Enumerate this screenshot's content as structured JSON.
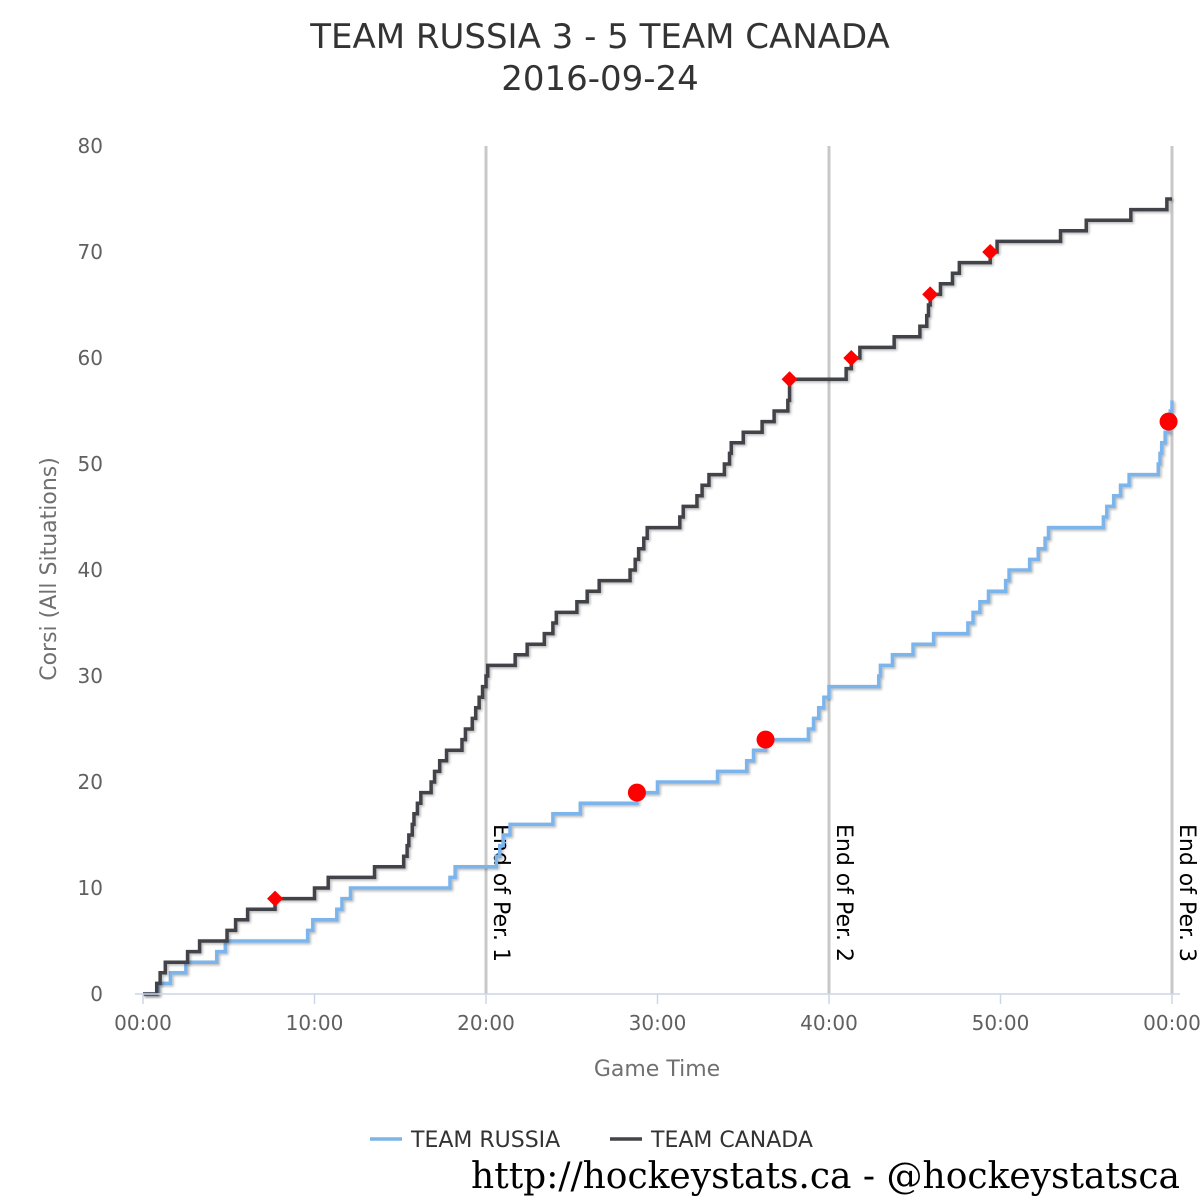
{
  "chart_data": {
    "type": "line",
    "title": "TEAM RUSSIA 3 - 5 TEAM CANADA",
    "subtitle": "2016-09-24",
    "xlabel": "Game Time",
    "ylabel": "Corsi (All Situations)",
    "x_unit": "minutes",
    "xlim": [
      0,
      60
    ],
    "ylim": [
      0,
      80
    ],
    "x_ticks": [
      {
        "value": 0,
        "label": "00:00"
      },
      {
        "value": 10,
        "label": "10:00"
      },
      {
        "value": 20,
        "label": "20:00"
      },
      {
        "value": 30,
        "label": "30:00"
      },
      {
        "value": 40,
        "label": "40:00"
      },
      {
        "value": 50,
        "label": "50:00"
      },
      {
        "value": 60,
        "label": "00:00"
      }
    ],
    "y_ticks": [
      0,
      10,
      20,
      30,
      40,
      50,
      60,
      70,
      80
    ],
    "grid": false,
    "period_markers": [
      {
        "x": 20,
        "label": "End of Per. 1"
      },
      {
        "x": 40,
        "label": "End of Per. 2"
      },
      {
        "x": 60,
        "label": "End of Per. 3"
      }
    ],
    "legend_position": "bottom-center",
    "series": [
      {
        "name": "TEAM RUSSIA",
        "color": "#7cb5ec",
        "goal_marker": "circle",
        "points": [
          [
            0.9,
            1
          ],
          [
            1.6,
            2
          ],
          [
            2.5,
            3
          ],
          [
            4.3,
            4
          ],
          [
            4.8,
            5
          ],
          [
            9.6,
            6
          ],
          [
            9.9,
            7
          ],
          [
            11.3,
            8
          ],
          [
            11.6,
            9
          ],
          [
            12.1,
            10
          ],
          [
            17.9,
            11
          ],
          [
            18.2,
            12
          ],
          [
            20.6,
            13
          ],
          [
            20.8,
            14
          ],
          [
            21.0,
            15
          ],
          [
            21.4,
            16
          ],
          [
            23.9,
            17
          ],
          [
            25.5,
            18
          ],
          [
            28.8,
            19
          ],
          [
            30.0,
            20
          ],
          [
            33.5,
            21
          ],
          [
            35.2,
            22
          ],
          [
            35.6,
            23
          ],
          [
            36.3,
            24
          ],
          [
            38.8,
            25
          ],
          [
            39.1,
            26
          ],
          [
            39.4,
            27
          ],
          [
            39.7,
            28
          ],
          [
            40.0,
            29
          ],
          [
            42.9,
            30
          ],
          [
            43.0,
            31
          ],
          [
            43.7,
            32
          ],
          [
            44.9,
            33
          ],
          [
            46.1,
            34
          ],
          [
            48.1,
            35
          ],
          [
            48.4,
            36
          ],
          [
            48.8,
            37
          ],
          [
            49.3,
            38
          ],
          [
            50.3,
            39
          ],
          [
            50.5,
            40
          ],
          [
            51.7,
            41
          ],
          [
            52.2,
            42
          ],
          [
            52.6,
            43
          ],
          [
            52.8,
            44
          ],
          [
            56.0,
            45
          ],
          [
            56.2,
            46
          ],
          [
            56.6,
            47
          ],
          [
            57.0,
            48
          ],
          [
            57.5,
            49
          ],
          [
            59.2,
            50
          ],
          [
            59.3,
            51
          ],
          [
            59.4,
            52
          ],
          [
            59.6,
            53
          ],
          [
            59.8,
            54
          ],
          [
            59.9,
            55
          ],
          [
            60.0,
            56
          ]
        ],
        "goals": [
          28.8,
          36.3,
          59.8
        ]
      },
      {
        "name": "TEAM CANADA",
        "color": "#434348",
        "goal_marker": "diamond",
        "points": [
          [
            0.8,
            1
          ],
          [
            1.0,
            2
          ],
          [
            1.3,
            3
          ],
          [
            2.6,
            4
          ],
          [
            3.3,
            5
          ],
          [
            4.9,
            6
          ],
          [
            5.4,
            7
          ],
          [
            6.1,
            8
          ],
          [
            7.7,
            9
          ],
          [
            10.0,
            10
          ],
          [
            10.8,
            11
          ],
          [
            13.5,
            12
          ],
          [
            15.2,
            13
          ],
          [
            15.4,
            14
          ],
          [
            15.5,
            15
          ],
          [
            15.7,
            16
          ],
          [
            15.8,
            17
          ],
          [
            16.0,
            18
          ],
          [
            16.2,
            19
          ],
          [
            16.8,
            20
          ],
          [
            17.0,
            21
          ],
          [
            17.3,
            22
          ],
          [
            17.7,
            23
          ],
          [
            18.6,
            24
          ],
          [
            18.8,
            25
          ],
          [
            19.2,
            26
          ],
          [
            19.4,
            27
          ],
          [
            19.6,
            28
          ],
          [
            19.8,
            29
          ],
          [
            20.0,
            30
          ],
          [
            20.1,
            31
          ],
          [
            21.7,
            32
          ],
          [
            22.4,
            33
          ],
          [
            23.4,
            34
          ],
          [
            23.9,
            35
          ],
          [
            24.1,
            36
          ],
          [
            25.3,
            37
          ],
          [
            25.9,
            38
          ],
          [
            26.6,
            39
          ],
          [
            28.4,
            40
          ],
          [
            28.7,
            41
          ],
          [
            28.9,
            42
          ],
          [
            29.2,
            43
          ],
          [
            29.4,
            44
          ],
          [
            31.3,
            45
          ],
          [
            31.5,
            46
          ],
          [
            32.3,
            47
          ],
          [
            32.6,
            48
          ],
          [
            33.0,
            49
          ],
          [
            33.9,
            50
          ],
          [
            34.2,
            51
          ],
          [
            34.3,
            52
          ],
          [
            35.0,
            53
          ],
          [
            36.1,
            54
          ],
          [
            36.8,
            55
          ],
          [
            37.6,
            56
          ],
          [
            37.7,
            57
          ],
          [
            37.7,
            58
          ],
          [
            41.0,
            59
          ],
          [
            41.3,
            60
          ],
          [
            41.8,
            61
          ],
          [
            43.8,
            62
          ],
          [
            45.3,
            63
          ],
          [
            45.7,
            64
          ],
          [
            45.8,
            65
          ],
          [
            45.9,
            66
          ],
          [
            46.5,
            67
          ],
          [
            47.2,
            68
          ],
          [
            47.6,
            69
          ],
          [
            49.4,
            70
          ],
          [
            49.8,
            71
          ],
          [
            53.5,
            72
          ],
          [
            55.0,
            73
          ],
          [
            57.6,
            74
          ],
          [
            59.7,
            75
          ]
        ],
        "goals": [
          7.7,
          37.7,
          41.3,
          45.9,
          49.4
        ]
      }
    ]
  },
  "credit_text": "http://hockeystats.ca - @hockeystatsca"
}
